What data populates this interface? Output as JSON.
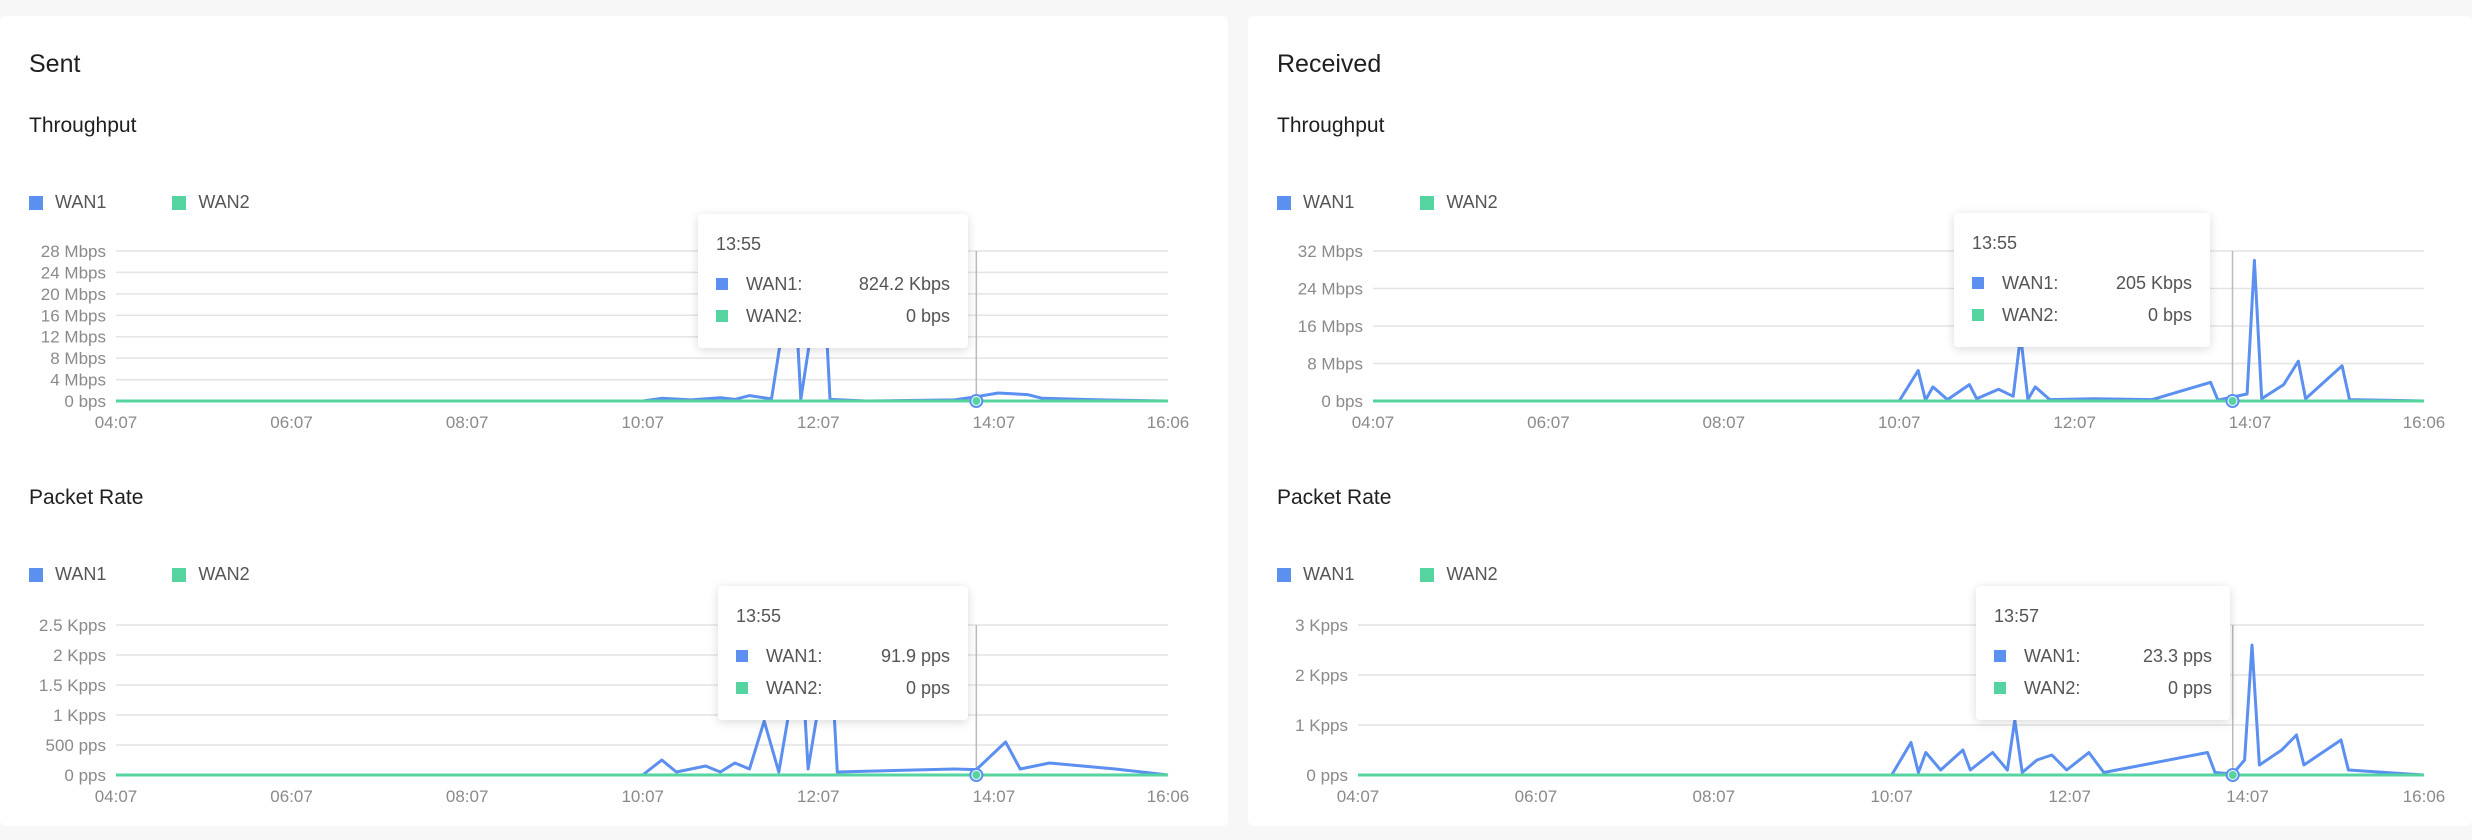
{
  "colors": {
    "wan1": "#5b8ff0",
    "wan2": "#55d4a0",
    "grid": "#e4e4e4",
    "axis": "#8a8a8a"
  },
  "panels": [
    {
      "title": "Sent",
      "throughput": {
        "title": "Throughput",
        "legend": [
          "WAN1",
          "WAN2"
        ],
        "tooltip": {
          "time": "13:55",
          "rows": [
            {
              "name": "WAN1:",
              "value": "824.2 Kbps"
            },
            {
              "name": "WAN2:",
              "value": "0 bps"
            }
          ]
        }
      },
      "packet_rate": {
        "title": "Packet Rate",
        "legend": [
          "WAN1",
          "WAN2"
        ],
        "tooltip": {
          "time": "13:55",
          "rows": [
            {
              "name": "WAN1:",
              "value": "91.9 pps"
            },
            {
              "name": "WAN2:",
              "value": "0 pps"
            }
          ]
        }
      }
    },
    {
      "title": "Received",
      "throughput": {
        "title": "Throughput",
        "legend": [
          "WAN1",
          "WAN2"
        ],
        "tooltip": {
          "time": "13:55",
          "rows": [
            {
              "name": "WAN1:",
              "value": "205 Kbps"
            },
            {
              "name": "WAN2:",
              "value": "0 bps"
            }
          ]
        }
      },
      "packet_rate": {
        "title": "Packet Rate",
        "legend": [
          "WAN1",
          "WAN2"
        ],
        "tooltip": {
          "time": "13:57",
          "rows": [
            {
              "name": "WAN1:",
              "value": "23.3 pps"
            },
            {
              "name": "WAN2:",
              "value": "0 pps"
            }
          ]
        }
      }
    }
  ],
  "chart_data": [
    {
      "type": "line",
      "title": "Throughput",
      "panel": "Sent",
      "x_ticks": [
        "04:07",
        "06:07",
        "08:07",
        "10:07",
        "12:07",
        "14:07",
        "16:06"
      ],
      "y_ticks": [
        "0 bps",
        "4 Mbps",
        "8 Mbps",
        "12 Mbps",
        "16 Mbps",
        "20 Mbps",
        "24 Mbps",
        "28 Mbps"
      ],
      "ylim": [
        0,
        28
      ],
      "y_unit": "Mbps",
      "hover_x": "13:55",
      "series": [
        {
          "name": "WAN1",
          "points": [
            [
              "04:07",
              0
            ],
            [
              "10:07",
              0
            ],
            [
              "10:20",
              0.5
            ],
            [
              "10:40",
              0.2
            ],
            [
              "11:00",
              0.6
            ],
            [
              "11:10",
              0.3
            ],
            [
              "11:20",
              1.0
            ],
            [
              "11:35",
              0.4
            ],
            [
              "11:50",
              26.5
            ],
            [
              "11:55",
              0.3
            ],
            [
              "12:10",
              27.0
            ],
            [
              "12:15",
              0.3
            ],
            [
              "12:40",
              0
            ],
            [
              "13:40",
              0.2
            ],
            [
              "13:55",
              0.8
            ],
            [
              "14:10",
              1.5
            ],
            [
              "14:30",
              1.2
            ],
            [
              "14:40",
              0.5
            ],
            [
              "15:20",
              0.2
            ],
            [
              "16:06",
              0
            ]
          ]
        },
        {
          "name": "WAN2",
          "points": [
            [
              "04:07",
              0
            ],
            [
              "16:06",
              0
            ]
          ]
        }
      ]
    },
    {
      "type": "line",
      "title": "Packet Rate",
      "panel": "Sent",
      "x_ticks": [
        "04:07",
        "06:07",
        "08:07",
        "10:07",
        "12:07",
        "14:07",
        "16:06"
      ],
      "y_ticks": [
        "0 pps",
        "500 pps",
        "1 Kpps",
        "1.5 Kpps",
        "2 Kpps",
        "2.5 Kpps"
      ],
      "ylim": [
        0,
        2.5
      ],
      "y_unit": "Kpps",
      "hover_x": "13:55",
      "series": [
        {
          "name": "WAN1",
          "points": [
            [
              "04:07",
              0
            ],
            [
              "10:07",
              0
            ],
            [
              "10:20",
              0.25
            ],
            [
              "10:30",
              0.05
            ],
            [
              "10:50",
              0.15
            ],
            [
              "11:00",
              0.05
            ],
            [
              "11:10",
              0.2
            ],
            [
              "11:20",
              0.1
            ],
            [
              "11:30",
              0.9
            ],
            [
              "11:40",
              0.05
            ],
            [
              "11:55",
              2.2
            ],
            [
              "12:00",
              0.1
            ],
            [
              "12:15",
              2.3
            ],
            [
              "12:20",
              0.05
            ],
            [
              "13:40",
              0.1
            ],
            [
              "13:55",
              0.09
            ],
            [
              "14:15",
              0.55
            ],
            [
              "14:25",
              0.1
            ],
            [
              "14:45",
              0.2
            ],
            [
              "15:30",
              0.1
            ],
            [
              "16:06",
              0
            ]
          ]
        },
        {
          "name": "WAN2",
          "points": [
            [
              "04:07",
              0
            ],
            [
              "16:06",
              0
            ]
          ]
        }
      ]
    },
    {
      "type": "line",
      "title": "Throughput",
      "panel": "Received",
      "x_ticks": [
        "04:07",
        "06:07",
        "08:07",
        "10:07",
        "12:07",
        "14:07",
        "16:06"
      ],
      "y_ticks": [
        "0 bps",
        "8 Mbps",
        "16 Mbps",
        "24 Mbps",
        "32 Mbps"
      ],
      "ylim": [
        0,
        32
      ],
      "y_unit": "Mbps",
      "hover_x": "13:55",
      "series": [
        {
          "name": "WAN1",
          "points": [
            [
              "04:07",
              0
            ],
            [
              "10:07",
              0
            ],
            [
              "10:20",
              6.5
            ],
            [
              "10:25",
              0.2
            ],
            [
              "10:30",
              3.0
            ],
            [
              "10:40",
              0.3
            ],
            [
              "10:55",
              3.5
            ],
            [
              "11:00",
              0.5
            ],
            [
              "11:15",
              2.5
            ],
            [
              "11:25",
              1.0
            ],
            [
              "11:30",
              14.0
            ],
            [
              "11:35",
              0.3
            ],
            [
              "11:40",
              3.0
            ],
            [
              "11:50",
              0.3
            ],
            [
              "12:20",
              0.5
            ],
            [
              "13:00",
              0.3
            ],
            [
              "13:40",
              4.0
            ],
            [
              "13:45",
              0.2
            ],
            [
              "14:05",
              1.5
            ],
            [
              "14:10",
              30.0
            ],
            [
              "14:15",
              0.5
            ],
            [
              "14:30",
              3.5
            ],
            [
              "14:40",
              8.5
            ],
            [
              "14:45",
              0.5
            ],
            [
              "15:10",
              7.5
            ],
            [
              "15:15",
              0.3
            ],
            [
              "16:06",
              0
            ]
          ]
        },
        {
          "name": "WAN2",
          "points": [
            [
              "04:07",
              0
            ],
            [
              "16:06",
              0
            ]
          ]
        }
      ]
    },
    {
      "type": "line",
      "title": "Packet Rate",
      "panel": "Received",
      "x_ticks": [
        "04:07",
        "06:07",
        "08:07",
        "10:07",
        "12:07",
        "14:07",
        "16:06"
      ],
      "y_ticks": [
        "0 pps",
        "1 Kpps",
        "2 Kpps",
        "3 Kpps"
      ],
      "ylim": [
        0,
        3
      ],
      "y_unit": "Kpps",
      "hover_x": "13:57",
      "series": [
        {
          "name": "WAN1",
          "points": [
            [
              "04:07",
              0
            ],
            [
              "10:07",
              0
            ],
            [
              "10:20",
              0.65
            ],
            [
              "10:25",
              0.05
            ],
            [
              "10:30",
              0.45
            ],
            [
              "10:40",
              0.1
            ],
            [
              "10:55",
              0.5
            ],
            [
              "11:00",
              0.1
            ],
            [
              "11:15",
              0.45
            ],
            [
              "11:25",
              0.1
            ],
            [
              "11:30",
              1.1
            ],
            [
              "11:35",
              0.05
            ],
            [
              "11:45",
              0.3
            ],
            [
              "11:55",
              0.4
            ],
            [
              "12:05",
              0.1
            ],
            [
              "12:20",
              0.45
            ],
            [
              "12:30",
              0.05
            ],
            [
              "13:40",
              0.45
            ],
            [
              "13:45",
              0.05
            ],
            [
              "13:57",
              0.02
            ],
            [
              "14:05",
              0.3
            ],
            [
              "14:10",
              2.6
            ],
            [
              "14:15",
              0.2
            ],
            [
              "14:30",
              0.5
            ],
            [
              "14:40",
              0.8
            ],
            [
              "14:45",
              0.2
            ],
            [
              "15:10",
              0.7
            ],
            [
              "15:15",
              0.1
            ],
            [
              "16:06",
              0
            ]
          ]
        },
        {
          "name": "WAN2",
          "points": [
            [
              "04:07",
              0
            ],
            [
              "16:06",
              0
            ]
          ]
        }
      ]
    }
  ]
}
